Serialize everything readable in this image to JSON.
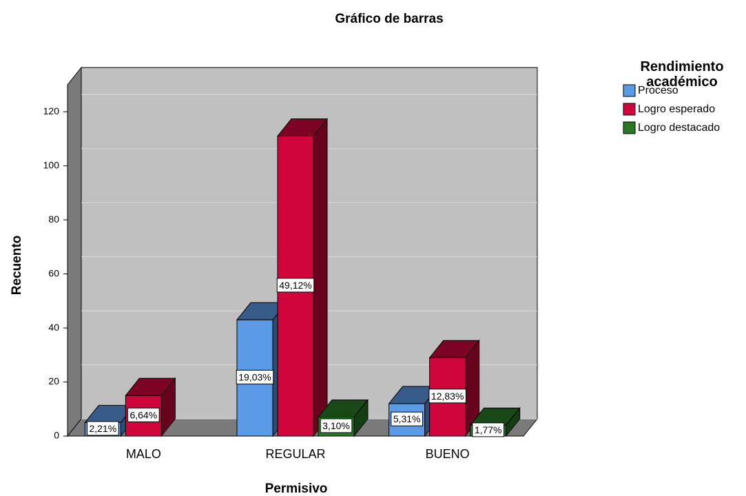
{
  "chart_data": {
    "type": "bar3d",
    "title": "Gráfico de barras",
    "x_label": "Permisivo",
    "y_label": "Recuento",
    "legend_title": "Rendimiento académico",
    "categories": [
      "MALO",
      "REGULAR",
      "BUENO"
    ],
    "series": [
      {
        "name": "Proceso",
        "color": "#5b9ae6",
        "values": [
          5,
          43,
          12
        ],
        "value_labels": [
          "2,21%",
          "19,03%",
          "5,31%"
        ]
      },
      {
        "name": "Logro esperado",
        "color": "#d0053c",
        "values": [
          15,
          111,
          29
        ],
        "value_labels": [
          "6,64%",
          "49,12%",
          "12,83%"
        ]
      },
      {
        "name": "Logro destacado",
        "color": "#2a7a25",
        "values": [
          null,
          7,
          4
        ],
        "value_labels": [
          null,
          "3,10%",
          "1,77%"
        ]
      }
    ],
    "ylim": [
      0,
      130
    ],
    "yticks": [
      0,
      20,
      40,
      60,
      80,
      100,
      120
    ],
    "grid": true
  }
}
